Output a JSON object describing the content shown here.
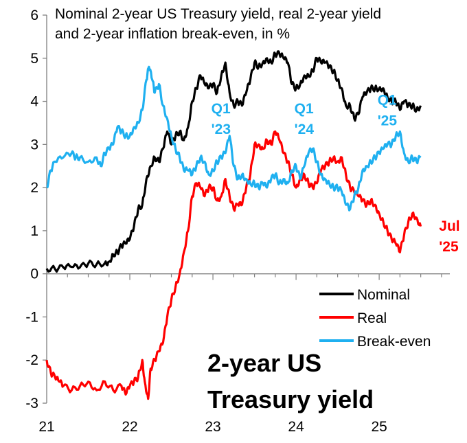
{
  "chart_data": {
    "type": "line",
    "title_lines": [
      "Nominal 2-year US Treasury yield, real 2-year yield",
      "and 2-year inflation break-even, in %"
    ],
    "corner_label_lines": [
      "2-year US",
      "Treasury yield"
    ],
    "xlim": [
      2021.0,
      2025.85
    ],
    "ylim": [
      -3,
      6
    ],
    "x_ticks": [
      {
        "value": 2021,
        "label": "21"
      },
      {
        "value": 2022,
        "label": "22"
      },
      {
        "value": 2023,
        "label": "23"
      },
      {
        "value": 2024,
        "label": "24"
      },
      {
        "value": 2025,
        "label": "25"
      }
    ],
    "y_ticks": [
      {
        "value": 6,
        "label": "6"
      },
      {
        "value": 5,
        "label": "5"
      },
      {
        "value": 4,
        "label": "4"
      },
      {
        "value": 3,
        "label": "3"
      },
      {
        "value": 2,
        "label": "2"
      },
      {
        "value": 1,
        "label": "1"
      },
      {
        "value": 0,
        "label": "0"
      },
      {
        "value": -1,
        "label": "-1"
      },
      {
        "value": -2,
        "label": "-2"
      },
      {
        "value": -3,
        "label": "-3"
      }
    ],
    "grid": false,
    "legend_position": "bottom-right",
    "series": [
      {
        "name": "Nominal",
        "color": "#000000",
        "points": [
          [
            2021.0,
            0.12
          ],
          [
            2021.1,
            0.11
          ],
          [
            2021.2,
            0.15
          ],
          [
            2021.3,
            0.16
          ],
          [
            2021.4,
            0.15
          ],
          [
            2021.5,
            0.24
          ],
          [
            2021.6,
            0.22
          ],
          [
            2021.7,
            0.25
          ],
          [
            2021.75,
            0.28
          ],
          [
            2021.8,
            0.45
          ],
          [
            2021.85,
            0.5
          ],
          [
            2021.9,
            0.65
          ],
          [
            2021.95,
            0.7
          ],
          [
            2022.0,
            0.8
          ],
          [
            2022.05,
            1.1
          ],
          [
            2022.1,
            1.5
          ],
          [
            2022.15,
            1.6
          ],
          [
            2022.2,
            2.2
          ],
          [
            2022.25,
            2.5
          ],
          [
            2022.3,
            2.7
          ],
          [
            2022.35,
            2.6
          ],
          [
            2022.4,
            2.9
          ],
          [
            2022.45,
            3.3
          ],
          [
            2022.5,
            3.0
          ],
          [
            2022.55,
            3.2
          ],
          [
            2022.6,
            3.3
          ],
          [
            2022.65,
            3.1
          ],
          [
            2022.7,
            3.4
          ],
          [
            2022.75,
            4.0
          ],
          [
            2022.8,
            4.3
          ],
          [
            2022.85,
            4.6
          ],
          [
            2022.9,
            4.4
          ],
          [
            2022.95,
            4.3
          ],
          [
            2023.0,
            4.4
          ],
          [
            2023.05,
            4.2
          ],
          [
            2023.1,
            4.6
          ],
          [
            2023.15,
            4.9
          ],
          [
            2023.2,
            4.2
          ],
          [
            2023.25,
            3.9
          ],
          [
            2023.3,
            4.0
          ],
          [
            2023.35,
            3.9
          ],
          [
            2023.4,
            4.2
          ],
          [
            2023.45,
            4.5
          ],
          [
            2023.5,
            4.9
          ],
          [
            2023.55,
            4.8
          ],
          [
            2023.6,
            4.9
          ],
          [
            2023.65,
            5.0
          ],
          [
            2023.7,
            4.9
          ],
          [
            2023.75,
            5.1
          ],
          [
            2023.8,
            5.1
          ],
          [
            2023.85,
            5.0
          ],
          [
            2023.9,
            4.9
          ],
          [
            2023.95,
            4.4
          ],
          [
            2024.0,
            4.3
          ],
          [
            2024.05,
            4.4
          ],
          [
            2024.1,
            4.6
          ],
          [
            2024.15,
            4.6
          ],
          [
            2024.2,
            4.7
          ],
          [
            2024.25,
            5.0
          ],
          [
            2024.3,
            4.9
          ],
          [
            2024.35,
            4.9
          ],
          [
            2024.4,
            4.8
          ],
          [
            2024.45,
            4.7
          ],
          [
            2024.5,
            4.5
          ],
          [
            2024.55,
            4.3
          ],
          [
            2024.6,
            3.9
          ],
          [
            2024.65,
            3.9
          ],
          [
            2024.7,
            3.6
          ],
          [
            2024.75,
            3.7
          ],
          [
            2024.8,
            4.1
          ],
          [
            2024.85,
            4.2
          ],
          [
            2024.9,
            4.3
          ],
          [
            2024.95,
            4.3
          ],
          [
            2025.0,
            4.3
          ],
          [
            2025.05,
            4.3
          ],
          [
            2025.1,
            4.1
          ],
          [
            2025.15,
            4.0
          ],
          [
            2025.2,
            4.0
          ],
          [
            2025.25,
            3.8
          ],
          [
            2025.3,
            4.0
          ],
          [
            2025.35,
            3.9
          ],
          [
            2025.4,
            3.9
          ],
          [
            2025.45,
            3.8
          ],
          [
            2025.5,
            3.9
          ]
        ]
      },
      {
        "name": "Real",
        "color": "#ff0000",
        "points": [
          [
            2021.0,
            -2.0
          ],
          [
            2021.05,
            -2.3
          ],
          [
            2021.1,
            -2.4
          ],
          [
            2021.15,
            -2.5
          ],
          [
            2021.2,
            -2.6
          ],
          [
            2021.3,
            -2.7
          ],
          [
            2021.4,
            -2.6
          ],
          [
            2021.5,
            -2.5
          ],
          [
            2021.6,
            -2.7
          ],
          [
            2021.7,
            -2.5
          ],
          [
            2021.8,
            -2.7
          ],
          [
            2021.9,
            -2.6
          ],
          [
            2021.95,
            -2.8
          ],
          [
            2022.0,
            -2.6
          ],
          [
            2022.05,
            -2.5
          ],
          [
            2022.1,
            -2.4
          ],
          [
            2022.15,
            -2.0
          ],
          [
            2022.18,
            -2.5
          ],
          [
            2022.22,
            -2.9
          ],
          [
            2022.25,
            -2.2
          ],
          [
            2022.3,
            -2.0
          ],
          [
            2022.35,
            -1.8
          ],
          [
            2022.4,
            -1.6
          ],
          [
            2022.45,
            -1.0
          ],
          [
            2022.5,
            -0.6
          ],
          [
            2022.55,
            -0.3
          ],
          [
            2022.6,
            0.0
          ],
          [
            2022.65,
            0.5
          ],
          [
            2022.7,
            1.0
          ],
          [
            2022.75,
            1.8
          ],
          [
            2022.8,
            2.1
          ],
          [
            2022.85,
            2.0
          ],
          [
            2022.9,
            1.8
          ],
          [
            2022.95,
            2.0
          ],
          [
            2023.0,
            2.0
          ],
          [
            2023.05,
            1.7
          ],
          [
            2023.1,
            1.8
          ],
          [
            2023.15,
            2.2
          ],
          [
            2023.2,
            1.8
          ],
          [
            2023.25,
            1.5
          ],
          [
            2023.3,
            1.6
          ],
          [
            2023.35,
            1.6
          ],
          [
            2023.4,
            2.0
          ],
          [
            2023.45,
            2.3
          ],
          [
            2023.5,
            3.0
          ],
          [
            2023.55,
            3.0
          ],
          [
            2023.6,
            2.9
          ],
          [
            2023.65,
            3.1
          ],
          [
            2023.7,
            3.0
          ],
          [
            2023.75,
            3.3
          ],
          [
            2023.8,
            3.1
          ],
          [
            2023.85,
            2.8
          ],
          [
            2023.9,
            2.6
          ],
          [
            2023.95,
            2.3
          ],
          [
            2024.0,
            2.0
          ],
          [
            2024.05,
            2.2
          ],
          [
            2024.1,
            2.3
          ],
          [
            2024.15,
            2.1
          ],
          [
            2024.2,
            2.0
          ],
          [
            2024.25,
            2.1
          ],
          [
            2024.3,
            2.4
          ],
          [
            2024.35,
            2.5
          ],
          [
            2024.4,
            2.6
          ],
          [
            2024.45,
            2.7
          ],
          [
            2024.5,
            2.6
          ],
          [
            2024.55,
            2.7
          ],
          [
            2024.6,
            2.3
          ],
          [
            2024.65,
            2.0
          ],
          [
            2024.7,
            1.9
          ],
          [
            2024.75,
            1.8
          ],
          [
            2024.8,
            1.7
          ],
          [
            2024.85,
            1.6
          ],
          [
            2024.9,
            1.7
          ],
          [
            2024.95,
            1.6
          ],
          [
            2025.0,
            1.4
          ],
          [
            2025.05,
            1.2
          ],
          [
            2025.1,
            1.0
          ],
          [
            2025.15,
            0.8
          ],
          [
            2025.2,
            0.7
          ],
          [
            2025.25,
            0.5
          ],
          [
            2025.3,
            0.9
          ],
          [
            2025.35,
            1.2
          ],
          [
            2025.4,
            1.4
          ],
          [
            2025.45,
            1.3
          ],
          [
            2025.5,
            1.1
          ]
        ]
      },
      {
        "name": "Break-even",
        "color": "#1fb0f0",
        "points": [
          [
            2021.0,
            2.0
          ],
          [
            2021.05,
            2.4
          ],
          [
            2021.1,
            2.6
          ],
          [
            2021.2,
            2.7
          ],
          [
            2021.3,
            2.8
          ],
          [
            2021.35,
            2.7
          ],
          [
            2021.4,
            2.7
          ],
          [
            2021.5,
            2.6
          ],
          [
            2021.6,
            2.7
          ],
          [
            2021.65,
            2.5
          ],
          [
            2021.7,
            2.8
          ],
          [
            2021.75,
            2.9
          ],
          [
            2021.8,
            3.0
          ],
          [
            2021.85,
            3.4
          ],
          [
            2021.9,
            3.3
          ],
          [
            2021.95,
            3.2
          ],
          [
            2022.0,
            3.2
          ],
          [
            2022.05,
            3.4
          ],
          [
            2022.1,
            3.5
          ],
          [
            2022.15,
            3.8
          ],
          [
            2022.2,
            4.5
          ],
          [
            2022.23,
            4.8
          ],
          [
            2022.27,
            4.5
          ],
          [
            2022.3,
            4.2
          ],
          [
            2022.35,
            4.4
          ],
          [
            2022.4,
            3.9
          ],
          [
            2022.45,
            3.6
          ],
          [
            2022.5,
            3.2
          ],
          [
            2022.55,
            2.9
          ],
          [
            2022.6,
            2.7
          ],
          [
            2022.65,
            2.4
          ],
          [
            2022.7,
            2.4
          ],
          [
            2022.75,
            2.3
          ],
          [
            2022.8,
            2.5
          ],
          [
            2022.85,
            2.7
          ],
          [
            2022.9,
            2.6
          ],
          [
            2022.95,
            2.3
          ],
          [
            2023.0,
            2.4
          ],
          [
            2023.05,
            2.6
          ],
          [
            2023.1,
            2.7
          ],
          [
            2023.15,
            2.8
          ],
          [
            2023.2,
            3.2
          ],
          [
            2023.25,
            2.5
          ],
          [
            2023.3,
            2.2
          ],
          [
            2023.35,
            2.3
          ],
          [
            2023.4,
            2.2
          ],
          [
            2023.45,
            2.1
          ],
          [
            2023.5,
            2.1
          ],
          [
            2023.55,
            2.0
          ],
          [
            2023.6,
            2.1
          ],
          [
            2023.65,
            2.0
          ],
          [
            2023.7,
            2.2
          ],
          [
            2023.75,
            2.3
          ],
          [
            2023.8,
            2.1
          ],
          [
            2023.85,
            2.2
          ],
          [
            2023.9,
            2.1
          ],
          [
            2023.95,
            2.4
          ],
          [
            2024.0,
            2.5
          ],
          [
            2024.05,
            2.2
          ],
          [
            2024.1,
            2.5
          ],
          [
            2024.15,
            2.8
          ],
          [
            2024.2,
            2.9
          ],
          [
            2024.25,
            2.6
          ],
          [
            2024.3,
            2.3
          ],
          [
            2024.35,
            2.2
          ],
          [
            2024.4,
            2.1
          ],
          [
            2024.45,
            2.0
          ],
          [
            2024.5,
            2.0
          ],
          [
            2024.55,
            1.9
          ],
          [
            2024.6,
            1.6
          ],
          [
            2024.65,
            1.5
          ],
          [
            2024.7,
            1.8
          ],
          [
            2024.75,
            2.0
          ],
          [
            2024.8,
            2.4
          ],
          [
            2024.85,
            2.5
          ],
          [
            2024.9,
            2.6
          ],
          [
            2024.95,
            2.7
          ],
          [
            2025.0,
            2.8
          ],
          [
            2025.05,
            2.9
          ],
          [
            2025.1,
            3.0
          ],
          [
            2025.15,
            3.0
          ],
          [
            2025.2,
            3.2
          ],
          [
            2025.25,
            3.3
          ],
          [
            2025.3,
            2.8
          ],
          [
            2025.35,
            2.6
          ],
          [
            2025.4,
            2.7
          ],
          [
            2025.45,
            2.6
          ],
          [
            2025.5,
            2.7
          ]
        ]
      }
    ],
    "annotations": [
      {
        "lines": [
          "Q1",
          "'23"
        ],
        "x": 2022.98,
        "y": 3.72,
        "color": "#1fb0f0"
      },
      {
        "lines": [
          "Q1",
          "'24"
        ],
        "x": 2023.98,
        "y": 3.72,
        "color": "#1fb0f0"
      },
      {
        "lines": [
          "Q1",
          "'25"
        ],
        "x": 2024.98,
        "y": 3.92,
        "color": "#1fb0f0"
      },
      {
        "lines": [
          "Jul",
          "'25"
        ],
        "x": 2025.72,
        "y": 1.0,
        "color": "#ff0000"
      }
    ]
  }
}
